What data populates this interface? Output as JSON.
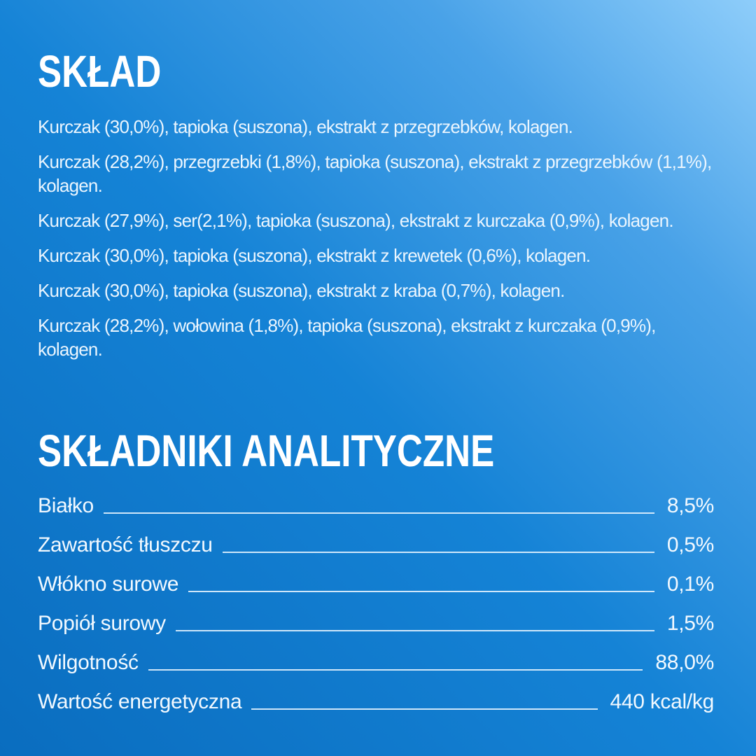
{
  "theme": {
    "background_gradient": [
      "#8ecdfa",
      "#49a2e8",
      "#1583d6",
      "#0a6dbf"
    ],
    "heading_color": "#ffffff",
    "body_text_color": "#eaf5fe",
    "leader_line_color": "rgba(232,245,255,0.88)"
  },
  "ingredients": {
    "title": "SKŁAD",
    "paragraphs": [
      "Kurczak (30,0%), tapioka (suszona), ekstrakt z przegrzebków, kolagen.",
      "Kurczak (28,2%), przegrzebki (1,8%), tapioka (suszona), ekstrakt z przegrzebków (1,1%), kolagen.",
      "Kurczak (27,9%), ser(2,1%), tapioka (suszona), ekstrakt z kurczaka (0,9%), kolagen.",
      "Kurczak (30,0%), tapioka (suszona), ekstrakt z krewetek (0,6%), kolagen.",
      "Kurczak (30,0%), tapioka (suszona), ekstrakt z kraba (0,7%), kolagen.",
      "Kurczak (28,2%), wołowina (1,8%), tapioka (suszona), ekstrakt z kurczaka (0,9%), kolagen."
    ]
  },
  "analytical": {
    "title": "SKŁADNIKI ANALITYCZNE",
    "rows": [
      {
        "label": "Białko",
        "value": "8,5%"
      },
      {
        "label": "Zawartość tłuszczu",
        "value": "0,5%"
      },
      {
        "label": "Włókno surowe",
        "value": "0,1%"
      },
      {
        "label": "Popiół surowy",
        "value": "1,5%"
      },
      {
        "label": "Wilgotność",
        "value": "88,0%"
      },
      {
        "label": "Wartość energetyczna",
        "value": "440 kcal/kg"
      }
    ]
  }
}
